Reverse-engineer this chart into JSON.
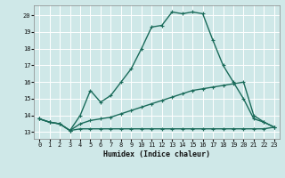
{
  "xlabel": "Humidex (Indice chaleur)",
  "bg_color": "#cfe8e8",
  "grid_color": "#ffffff",
  "line_color": "#1a6b5a",
  "x_ticks": [
    0,
    1,
    2,
    3,
    4,
    5,
    6,
    7,
    8,
    9,
    10,
    11,
    12,
    13,
    14,
    15,
    16,
    17,
    18,
    19,
    20,
    21,
    22,
    23
  ],
  "y_ticks": [
    13,
    14,
    15,
    16,
    17,
    18,
    19,
    20
  ],
  "ylim": [
    12.6,
    20.6
  ],
  "xlim": [
    -0.5,
    23.5
  ],
  "line1_y": [
    13.8,
    13.6,
    13.5,
    13.1,
    14.0,
    15.5,
    14.8,
    15.2,
    16.0,
    16.8,
    18.0,
    19.3,
    19.4,
    20.2,
    20.1,
    20.2,
    20.1,
    18.5,
    17.0,
    16.0,
    15.0,
    13.8,
    13.6,
    13.3
  ],
  "line2_y": [
    13.8,
    13.6,
    13.5,
    13.1,
    13.5,
    13.7,
    13.8,
    13.9,
    14.1,
    14.3,
    14.5,
    14.7,
    14.9,
    15.1,
    15.3,
    15.5,
    15.6,
    15.7,
    15.8,
    15.9,
    16.0,
    14.0,
    13.6,
    13.3
  ],
  "line3_y": [
    13.8,
    13.6,
    13.5,
    13.1,
    13.2,
    13.2,
    13.2,
    13.2,
    13.2,
    13.2,
    13.2,
    13.2,
    13.2,
    13.2,
    13.2,
    13.2,
    13.2,
    13.2,
    13.2,
    13.2,
    13.2,
    13.2,
    13.2,
    13.3
  ],
  "xlabel_fontsize": 6,
  "tick_fontsize": 5,
  "linewidth": 1.0,
  "markersize": 3
}
